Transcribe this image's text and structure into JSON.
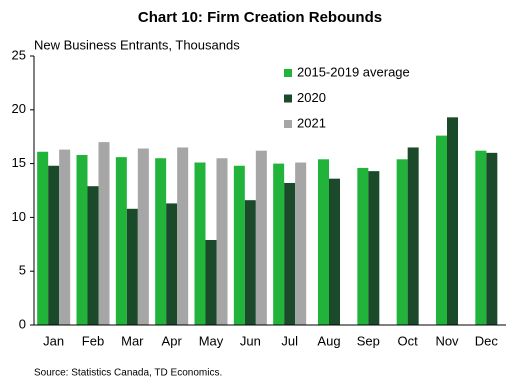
{
  "chart_data": {
    "type": "bar",
    "title": "Chart 10: Firm Creation Rebounds",
    "subtitle": "New Business Entrants, Thousands",
    "categories": [
      "Jan",
      "Feb",
      "Mar",
      "Apr",
      "May",
      "Jun",
      "Jul",
      "Aug",
      "Sep",
      "Oct",
      "Nov",
      "Dec"
    ],
    "series": [
      {
        "name": "2015-2019 average",
        "color": "#22b43a",
        "values": [
          16.1,
          15.8,
          15.6,
          15.5,
          15.1,
          14.8,
          15.0,
          15.4,
          14.6,
          15.4,
          17.6,
          16.2
        ]
      },
      {
        "name": "2020",
        "color": "#1b4a2b",
        "values": [
          14.8,
          12.9,
          10.8,
          11.3,
          7.9,
          11.6,
          13.2,
          13.6,
          14.3,
          16.5,
          19.3,
          16.0
        ]
      },
      {
        "name": "2021",
        "color": "#a6a6a6",
        "values": [
          16.3,
          17.0,
          16.4,
          16.5,
          15.5,
          16.2,
          15.1,
          null,
          null,
          null,
          null,
          null
        ]
      }
    ],
    "ylim": [
      0,
      25
    ],
    "yticks": [
      0,
      5,
      10,
      15,
      20,
      25
    ],
    "legend": "top-center",
    "note": "Source:  Statistics Canada, TD Economics."
  }
}
